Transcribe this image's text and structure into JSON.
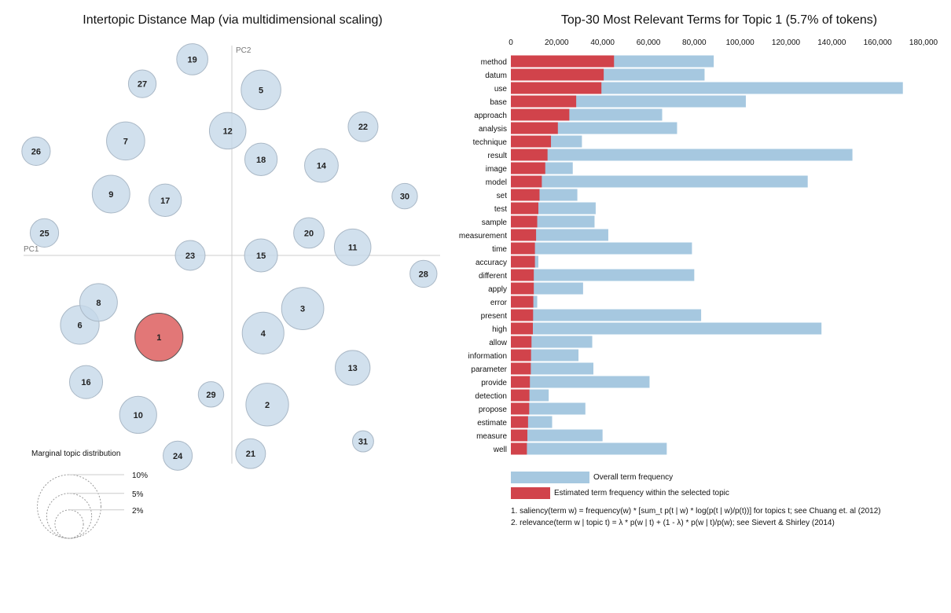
{
  "chart_data": [
    {
      "type": "scatter",
      "title": "Intertopic Distance Map (via multidimensional scaling)",
      "xlabel": "PC1",
      "ylabel": "PC2",
      "selected_topic": "1",
      "topics": [
        {
          "label": "1",
          "pc1": -0.35,
          "pc2": -0.4,
          "size": 5.7
        },
        {
          "label": "2",
          "pc1": 0.17,
          "pc2": -0.73,
          "size": 4.5
        },
        {
          "label": "3",
          "pc1": 0.34,
          "pc2": -0.26,
          "size": 4.4
        },
        {
          "label": "4",
          "pc1": 0.15,
          "pc2": -0.38,
          "size": 4.3
        },
        {
          "label": "5",
          "pc1": 0.14,
          "pc2": 0.81,
          "size": 3.9
        },
        {
          "label": "6",
          "pc1": -0.73,
          "pc2": -0.34,
          "size": 3.7
        },
        {
          "label": "7",
          "pc1": -0.51,
          "pc2": 0.56,
          "size": 3.6
        },
        {
          "label": "8",
          "pc1": -0.64,
          "pc2": -0.23,
          "size": 3.5
        },
        {
          "label": "9",
          "pc1": -0.58,
          "pc2": 0.3,
          "size": 3.5
        },
        {
          "label": "10",
          "pc1": -0.45,
          "pc2": -0.78,
          "size": 3.4
        },
        {
          "label": "11",
          "pc1": 0.58,
          "pc2": 0.04,
          "size": 3.3
        },
        {
          "label": "12",
          "pc1": -0.02,
          "pc2": 0.61,
          "size": 3.3
        },
        {
          "label": "13",
          "pc1": 0.58,
          "pc2": -0.55,
          "size": 3.0
        },
        {
          "label": "14",
          "pc1": 0.43,
          "pc2": 0.44,
          "size": 2.8
        },
        {
          "label": "15",
          "pc1": 0.14,
          "pc2": 0.0,
          "size": 2.7
        },
        {
          "label": "16",
          "pc1": -0.7,
          "pc2": -0.62,
          "size": 2.7
        },
        {
          "label": "17",
          "pc1": -0.32,
          "pc2": 0.27,
          "size": 2.6
        },
        {
          "label": "18",
          "pc1": 0.14,
          "pc2": 0.47,
          "size": 2.6
        },
        {
          "label": "19",
          "pc1": -0.19,
          "pc2": 0.96,
          "size": 2.4
        },
        {
          "label": "20",
          "pc1": 0.37,
          "pc2": 0.11,
          "size": 2.3
        },
        {
          "label": "21",
          "pc1": 0.09,
          "pc2": -0.97,
          "size": 2.2
        },
        {
          "label": "22",
          "pc1": 0.63,
          "pc2": 0.63,
          "size": 2.2
        },
        {
          "label": "23",
          "pc1": -0.2,
          "pc2": 0.0,
          "size": 2.2
        },
        {
          "label": "24",
          "pc1": -0.26,
          "pc2": -0.98,
          "size": 2.1
        },
        {
          "label": "25",
          "pc1": -0.9,
          "pc2": 0.11,
          "size": 2.0
        },
        {
          "label": "26",
          "pc1": -0.94,
          "pc2": 0.51,
          "size": 2.0
        },
        {
          "label": "27",
          "pc1": -0.43,
          "pc2": 0.84,
          "size": 1.9
        },
        {
          "label": "28",
          "pc1": 0.92,
          "pc2": -0.09,
          "size": 1.8
        },
        {
          "label": "29",
          "pc1": -0.1,
          "pc2": -0.68,
          "size": 1.6
        },
        {
          "label": "30",
          "pc1": 0.83,
          "pc2": 0.29,
          "size": 1.6
        },
        {
          "label": "31",
          "pc1": 0.63,
          "pc2": -0.91,
          "size": 1.1
        }
      ],
      "size_legend": {
        "title": "Marginal topic distribution",
        "entries": [
          {
            "label": "2%",
            "value": 2
          },
          {
            "label": "5%",
            "value": 5
          },
          {
            "label": "10%",
            "value": 10
          }
        ]
      }
    },
    {
      "type": "bar",
      "orientation": "horizontal",
      "title": "Top-30 Most Relevant Terms for Topic 1 (5.7% of tokens)",
      "xlim": [
        0,
        180000
      ],
      "xticks": [
        "0",
        "20,000",
        "40,000",
        "60,000",
        "80,000",
        "100,000",
        "120,000",
        "140,000",
        "160,000",
        "180,000"
      ],
      "categories": [
        "method",
        "datum",
        "use",
        "base",
        "approach",
        "analysis",
        "technique",
        "result",
        "image",
        "model",
        "set",
        "test",
        "sample",
        "measurement",
        "time",
        "accuracy",
        "different",
        "apply",
        "error",
        "present",
        "high",
        "allow",
        "information",
        "parameter",
        "provide",
        "detection",
        "propose",
        "estimate",
        "measure",
        "well"
      ],
      "series": [
        {
          "name": "Overall term frequency",
          "color": "#a6c8e0",
          "values": [
            88500,
            84500,
            171000,
            102500,
            66000,
            72500,
            31000,
            149000,
            27000,
            129500,
            29000,
            37000,
            36500,
            42500,
            79000,
            12000,
            80000,
            31500,
            11500,
            83000,
            135500,
            35500,
            29500,
            36000,
            60500,
            16500,
            32500,
            18000,
            40000,
            68000
          ]
        },
        {
          "name": "Estimated term frequency within the selected topic",
          "color": "#d1434b",
          "values": [
            45000,
            40500,
            39500,
            28500,
            25500,
            20500,
            17500,
            16000,
            15000,
            13500,
            12500,
            12000,
            11500,
            11000,
            10500,
            10500,
            10000,
            10000,
            9800,
            9700,
            9600,
            9000,
            8800,
            8700,
            8300,
            8100,
            8000,
            7500,
            7200,
            7000
          ]
        }
      ],
      "footnotes": [
        "1. saliency(term w) = frequency(w) * [sum_t p(t | w) * log(p(t | w)/p(t))] for topics t; see Chuang et. al (2012)",
        "2. relevance(term w | topic t) = λ * p(w | t) + (1 - λ) * p(w | t)/p(w); see Sievert & Shirley (2014)"
      ]
    }
  ],
  "colors": {
    "bubble_fill": "#c6d8e8",
    "bubble_stroke": "#aab8c6",
    "selected_fill": "#e07070",
    "selected_stroke": "#555555",
    "overall_bar": "#a6c8e0",
    "topic_bar": "#d1434b",
    "axis_line": "#cccccc"
  }
}
